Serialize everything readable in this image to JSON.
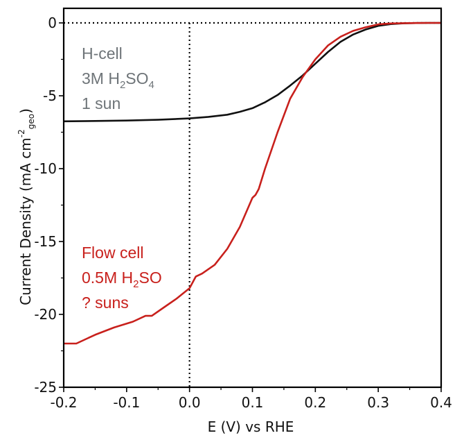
{
  "chart_data": {
    "type": "line",
    "xlabel": "E (V) vs RHE",
    "ylabel": {
      "main": "Current Density (mA cm",
      "sup": "-2",
      "sub": "geo",
      "close": ")"
    },
    "xlim": [
      -0.2,
      0.4
    ],
    "ylim": [
      -25,
      1
    ],
    "x_ticks": [
      "-0.2",
      "-0.1",
      "0.0",
      "0.1",
      "0.2",
      "0.3",
      "0.4"
    ],
    "y_ticks": [
      "0",
      "-5",
      "-10",
      "-15",
      "-20",
      "-25"
    ],
    "grid": false,
    "reference_lines": {
      "y": 0,
      "x": 0.0,
      "style": "dotted"
    },
    "annotations": [
      {
        "id": "h-cell",
        "color": "#6e7478",
        "lines": [
          {
            "text": "H-cell"
          },
          {
            "parts": [
              {
                "t": "3M H"
              },
              {
                "t": "2",
                "sub": true
              },
              {
                "t": "SO"
              },
              {
                "t": "4",
                "sub": true
              }
            ]
          },
          {
            "text": "1 sun"
          }
        ]
      },
      {
        "id": "flow-cell",
        "color": "#c8201c",
        "lines": [
          {
            "text": "Flow cell"
          },
          {
            "parts": [
              {
                "t": "0.5M H"
              },
              {
                "t": "2",
                "sub": true
              },
              {
                "t": "SO"
              }
            ]
          },
          {
            "text": "? suns"
          }
        ]
      }
    ],
    "series": [
      {
        "color": "#111111",
        "x": [
          -0.2,
          -0.15,
          -0.1,
          -0.05,
          0.0,
          0.03,
          0.06,
          0.08,
          0.1,
          0.12,
          0.14,
          0.16,
          0.18,
          0.2,
          0.22,
          0.24,
          0.26,
          0.28,
          0.3,
          0.32,
          0.34,
          0.36,
          0.38,
          0.4
        ],
        "y": [
          -6.75,
          -6.73,
          -6.7,
          -6.65,
          -6.55,
          -6.45,
          -6.3,
          -6.1,
          -5.85,
          -5.45,
          -4.95,
          -4.3,
          -3.6,
          -2.8,
          -2.0,
          -1.3,
          -0.8,
          -0.45,
          -0.2,
          -0.08,
          -0.03,
          -0.01,
          0.0,
          0.0
        ]
      },
      {
        "color": "#c8201c",
        "x": [
          -0.2,
          -0.18,
          -0.15,
          -0.12,
          -0.09,
          -0.07,
          -0.06,
          -0.04,
          -0.02,
          0.0,
          0.01,
          0.02,
          0.04,
          0.06,
          0.08,
          0.1,
          0.105,
          0.11,
          0.12,
          0.14,
          0.16,
          0.18,
          0.2,
          0.22,
          0.24,
          0.26,
          0.28,
          0.3,
          0.32,
          0.34,
          0.36,
          0.38,
          0.4
        ],
        "y": [
          -22.0,
          -22.0,
          -21.4,
          -20.9,
          -20.5,
          -20.1,
          -20.1,
          -19.5,
          -18.9,
          -18.2,
          -17.4,
          -17.2,
          -16.6,
          -15.5,
          -14.0,
          -12.0,
          -11.8,
          -11.4,
          -10.0,
          -7.5,
          -5.2,
          -3.7,
          -2.5,
          -1.55,
          -0.95,
          -0.55,
          -0.3,
          -0.1,
          -0.04,
          -0.02,
          -0.01,
          0.0,
          0.0
        ]
      }
    ]
  }
}
